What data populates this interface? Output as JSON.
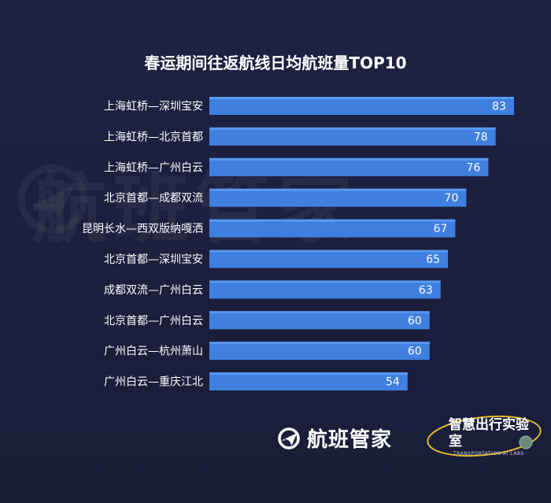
{
  "watermark": "航班管家",
  "brand": {
    "logo_text": "航班管家",
    "lab_name": "智慧出行实验室",
    "lab_subtitle": "TRANSPORTATION AI LABS"
  },
  "colors": {
    "background": "#1b1f3a",
    "bar": "#3f7fe0",
    "bar_highlight": "#5a98f0",
    "text": "#ffffff",
    "lab_ring": "#e0b830"
  },
  "chart_data": {
    "type": "bar",
    "orientation": "horizontal",
    "title": "春运期间往返航线日均航班量TOP10",
    "categories": [
      "上海虹桥—深圳宝安",
      "上海虹桥—北京首都",
      "上海虹桥—广州白云",
      "北京首都—成都双流",
      "昆明长水—西双版纳嘎洒",
      "北京首都—深圳宝安",
      "成都双流—广州白云",
      "北京首都—广州白云",
      "广州白云—杭州萧山",
      "广州白云—重庆江北"
    ],
    "values": [
      83,
      78,
      76,
      70,
      67,
      65,
      63,
      60,
      60,
      54
    ],
    "xlim": [
      0,
      83
    ],
    "grid": false,
    "legend": "none",
    "data_labels": "inside-end"
  }
}
